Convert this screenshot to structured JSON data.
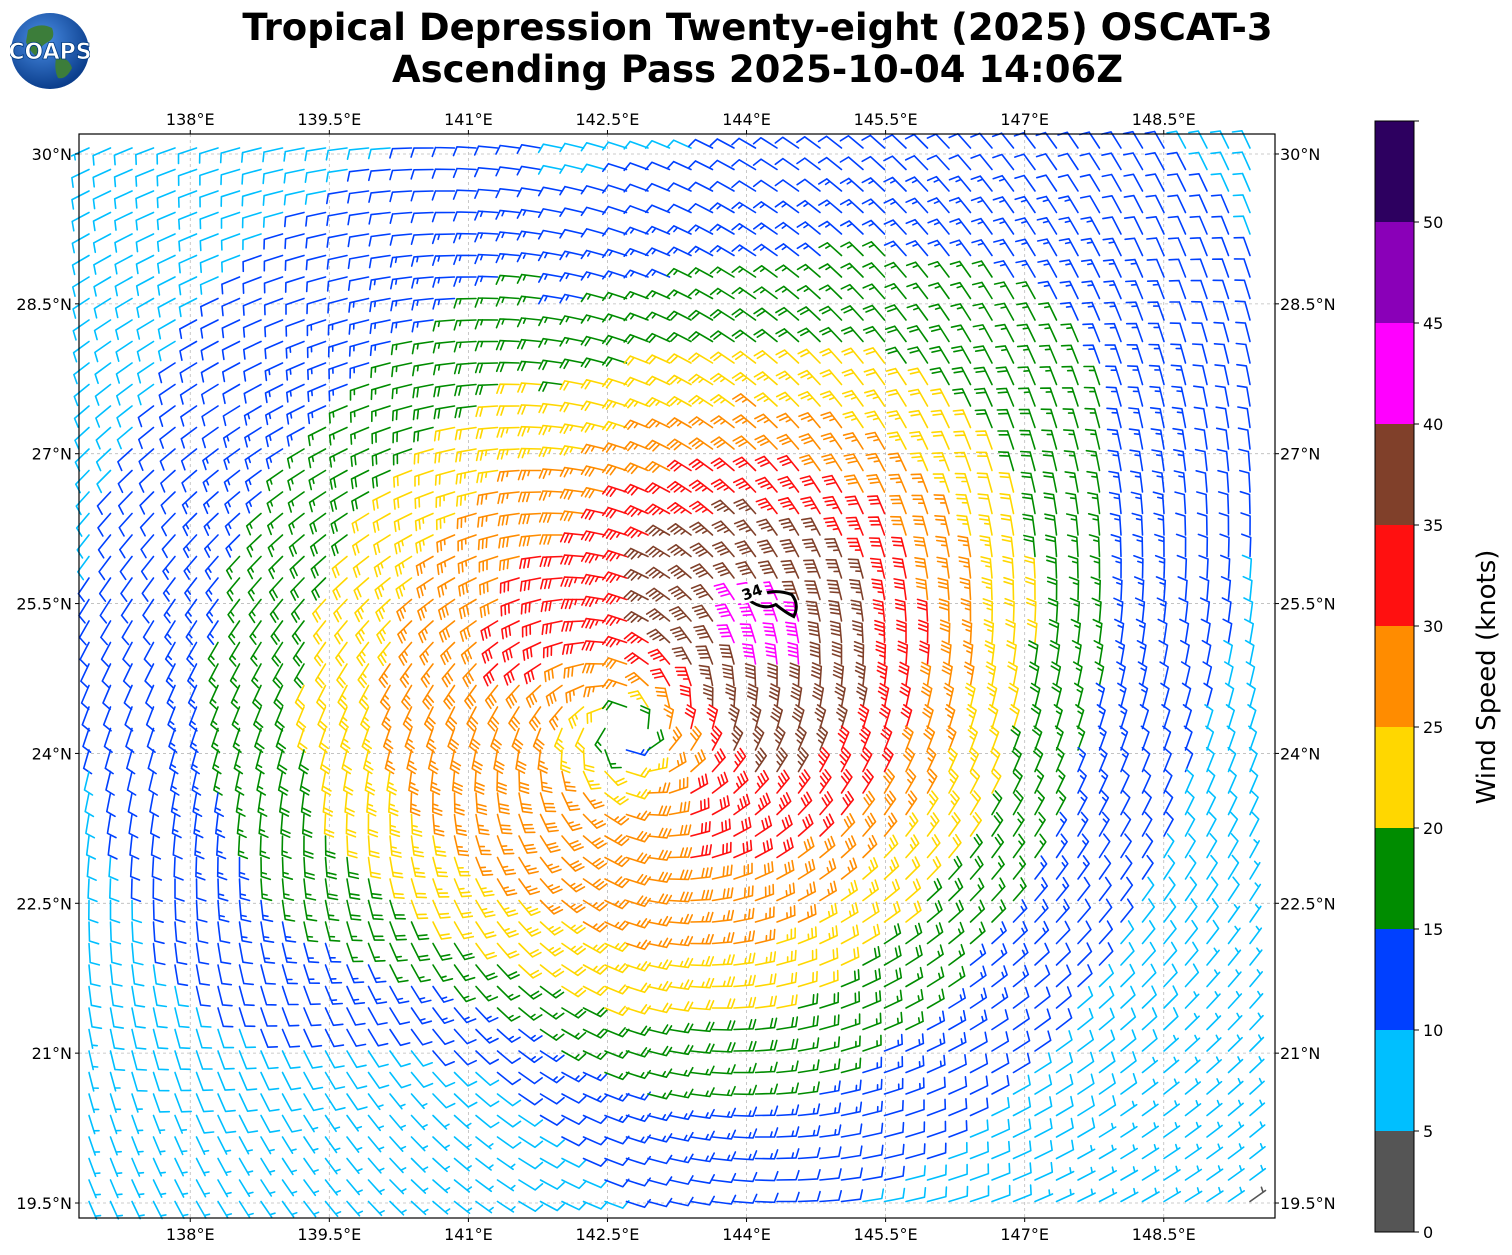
{
  "title_line1": "Tropical Depression Twenty-eight (2025) OSCAT-3",
  "title_line2": "Ascending Pass 2025-10-04 14:06Z",
  "logo_text": "COAPS",
  "map": {
    "lon_range": [
      136.8,
      149.7
    ],
    "lat_range": [
      19.35,
      30.2
    ],
    "lon_ticks": [
      138.0,
      139.5,
      141.0,
      142.5,
      144.0,
      145.5,
      147.0,
      148.5
    ],
    "lon_tick_labels": [
      "138°E",
      "139.5°E",
      "141°E",
      "142.5°E",
      "144°E",
      "145.5°E",
      "147°E",
      "148.5°E"
    ],
    "lat_ticks": [
      30.0,
      28.5,
      27.0,
      25.5,
      24.0,
      22.5,
      21.0,
      19.5
    ],
    "lat_tick_labels": [
      "30°N",
      "28.5°N",
      "27°N",
      "25.5°N",
      "24°N",
      "22.5°N",
      "21°N",
      "19.5°N"
    ],
    "gridlines": true,
    "center": {
      "lon": 142.7,
      "lat": 24.2
    },
    "contour_label": "34"
  },
  "colorbar": {
    "label": "Wind Speed (knots)",
    "bounds": [
      0,
      5,
      10,
      15,
      20,
      25,
      30,
      35,
      40,
      45,
      50,
      55
    ],
    "tick_labels": [
      "0",
      "5",
      "10",
      "15",
      "20",
      "25",
      "30",
      "35",
      "40",
      "45",
      "50"
    ],
    "colors": [
      "#555555",
      "#00bfff",
      "#0040ff",
      "#008c00",
      "#ffd700",
      "#ff8c00",
      "#ff1010",
      "#80402a",
      "#ff00ff",
      "#8a00b8",
      "#2d0060"
    ]
  }
}
